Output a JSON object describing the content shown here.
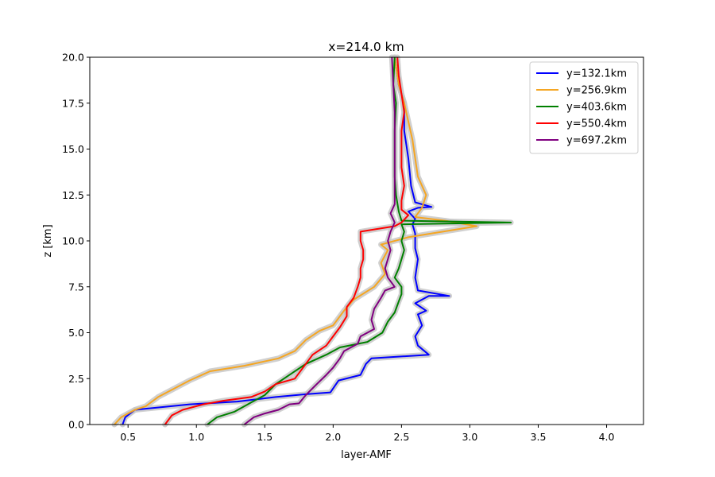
{
  "chart_data": {
    "type": "line",
    "title": "x=214.0 km",
    "xlabel": "layer-AMF",
    "ylabel": "z [km]",
    "xlim": [
      0.22,
      4.27
    ],
    "ylim": [
      0,
      20
    ],
    "xticks": [
      "0.5",
      "1.0",
      "1.5",
      "2.0",
      "2.5",
      "3.0",
      "3.5",
      "4.0"
    ],
    "yticks": [
      "0.0",
      "2.5",
      "5.0",
      "7.5",
      "10.0",
      "12.5",
      "15.0",
      "17.5",
      "20.0"
    ],
    "grid": false,
    "legend_position": "top-right",
    "uncertainty_band_color": "#c8c8c8",
    "series": [
      {
        "name": "y=132.1km",
        "color": "#0000ff",
        "points": [
          [
            0.46,
            0
          ],
          [
            0.48,
            0.4
          ],
          [
            0.55,
            0.8
          ],
          [
            0.95,
            1.1
          ],
          [
            1.3,
            1.25
          ],
          [
            1.58,
            1.5
          ],
          [
            1.8,
            1.65
          ],
          [
            1.98,
            1.75
          ],
          [
            2.04,
            2.4
          ],
          [
            2.2,
            2.7
          ],
          [
            2.24,
            3.3
          ],
          [
            2.28,
            3.6
          ],
          [
            2.7,
            3.8
          ],
          [
            2.62,
            4.3
          ],
          [
            2.6,
            4.8
          ],
          [
            2.65,
            5.4
          ],
          [
            2.62,
            6.0
          ],
          [
            2.68,
            6.2
          ],
          [
            2.6,
            6.6
          ],
          [
            2.7,
            7.0
          ],
          [
            2.85,
            7.0
          ],
          [
            2.62,
            7.3
          ],
          [
            2.6,
            8.0
          ],
          [
            2.62,
            9.0
          ],
          [
            2.6,
            9.6
          ],
          [
            2.6,
            10.4
          ],
          [
            2.58,
            10.9
          ],
          [
            2.6,
            11.2
          ],
          [
            2.55,
            11.6
          ],
          [
            2.62,
            11.8
          ],
          [
            2.72,
            11.85
          ],
          [
            2.6,
            12.1
          ],
          [
            2.57,
            13.0
          ],
          [
            2.55,
            14.5
          ],
          [
            2.52,
            16.0
          ],
          [
            2.52,
            17.5
          ],
          [
            2.48,
            18.5
          ],
          [
            2.45,
            20
          ]
        ]
      },
      {
        "name": "y=256.9km",
        "color": "#f5a623",
        "points": [
          [
            0.4,
            0
          ],
          [
            0.45,
            0.4
          ],
          [
            0.55,
            0.8
          ],
          [
            0.63,
            1.0
          ],
          [
            0.72,
            1.5
          ],
          [
            0.95,
            2.4
          ],
          [
            1.1,
            2.9
          ],
          [
            1.35,
            3.2
          ],
          [
            1.6,
            3.6
          ],
          [
            1.72,
            4.0
          ],
          [
            1.8,
            4.6
          ],
          [
            1.9,
            5.1
          ],
          [
            2.0,
            5.4
          ],
          [
            2.08,
            6.2
          ],
          [
            2.15,
            6.8
          ],
          [
            2.3,
            7.5
          ],
          [
            2.38,
            8.2
          ],
          [
            2.35,
            8.8
          ],
          [
            2.4,
            9.5
          ],
          [
            2.35,
            9.8
          ],
          [
            2.55,
            10.2
          ],
          [
            3.05,
            10.8
          ],
          [
            2.82,
            11.1
          ],
          [
            2.6,
            11.3
          ],
          [
            2.65,
            11.8
          ],
          [
            2.68,
            12.5
          ],
          [
            2.62,
            13.5
          ],
          [
            2.6,
            14.5
          ],
          [
            2.58,
            15.5
          ],
          [
            2.55,
            16.5
          ],
          [
            2.52,
            17.5
          ],
          [
            2.48,
            18.5
          ],
          [
            2.45,
            20
          ]
        ]
      },
      {
        "name": "y=403.6km",
        "color": "#008000",
        "points": [
          [
            1.08,
            0
          ],
          [
            1.15,
            0.4
          ],
          [
            1.28,
            0.7
          ],
          [
            1.4,
            1.2
          ],
          [
            1.5,
            1.6
          ],
          [
            1.58,
            2.2
          ],
          [
            1.7,
            2.8
          ],
          [
            1.8,
            3.3
          ],
          [
            1.95,
            3.8
          ],
          [
            2.05,
            4.2
          ],
          [
            2.25,
            4.5
          ],
          [
            2.36,
            5.0
          ],
          [
            2.4,
            5.6
          ],
          [
            2.45,
            6.1
          ],
          [
            2.48,
            6.7
          ],
          [
            2.5,
            7.1
          ],
          [
            2.5,
            7.5
          ],
          [
            2.45,
            8.0
          ],
          [
            2.48,
            8.5
          ],
          [
            2.5,
            9.0
          ],
          [
            2.52,
            9.5
          ],
          [
            2.5,
            10.0
          ],
          [
            2.52,
            10.5
          ],
          [
            2.5,
            10.9
          ],
          [
            3.3,
            11.0
          ],
          [
            2.5,
            11.1
          ],
          [
            2.48,
            11.6
          ],
          [
            2.46,
            12.5
          ],
          [
            2.45,
            13.5
          ],
          [
            2.45,
            14.5
          ],
          [
            2.45,
            16.0
          ],
          [
            2.46,
            17.5
          ],
          [
            2.44,
            18.5
          ],
          [
            2.45,
            20
          ]
        ]
      },
      {
        "name": "y=550.4km",
        "color": "#ff0000",
        "points": [
          [
            0.77,
            0
          ],
          [
            0.82,
            0.5
          ],
          [
            0.9,
            0.8
          ],
          [
            1.05,
            1.1
          ],
          [
            1.2,
            1.3
          ],
          [
            1.4,
            1.5
          ],
          [
            1.5,
            1.8
          ],
          [
            1.58,
            2.2
          ],
          [
            1.72,
            2.5
          ],
          [
            1.75,
            2.8
          ],
          [
            1.8,
            3.3
          ],
          [
            1.85,
            3.8
          ],
          [
            1.95,
            4.3
          ],
          [
            2.0,
            4.8
          ],
          [
            2.05,
            5.3
          ],
          [
            2.1,
            5.9
          ],
          [
            2.1,
            6.4
          ],
          [
            2.15,
            6.9
          ],
          [
            2.18,
            7.5
          ],
          [
            2.2,
            8.0
          ],
          [
            2.2,
            8.5
          ],
          [
            2.22,
            9.0
          ],
          [
            2.22,
            9.5
          ],
          [
            2.2,
            10.0
          ],
          [
            2.2,
            10.5
          ],
          [
            2.45,
            10.8
          ],
          [
            2.5,
            11.0
          ],
          [
            2.55,
            11.4
          ],
          [
            2.5,
            11.7
          ],
          [
            2.5,
            12.2
          ],
          [
            2.52,
            13.0
          ],
          [
            2.5,
            14.0
          ],
          [
            2.5,
            15.0
          ],
          [
            2.5,
            16.0
          ],
          [
            2.52,
            17.0
          ],
          [
            2.5,
            18.0
          ],
          [
            2.48,
            19.0
          ],
          [
            2.47,
            20
          ]
        ]
      },
      {
        "name": "y=697.2km",
        "color": "#800080",
        "points": [
          [
            1.35,
            0
          ],
          [
            1.42,
            0.4
          ],
          [
            1.5,
            0.6
          ],
          [
            1.6,
            0.8
          ],
          [
            1.68,
            1.1
          ],
          [
            1.75,
            1.15
          ],
          [
            1.8,
            1.6
          ],
          [
            1.88,
            2.2
          ],
          [
            1.95,
            2.7
          ],
          [
            2.0,
            3.1
          ],
          [
            2.05,
            3.6
          ],
          [
            2.08,
            4.0
          ],
          [
            2.18,
            4.4
          ],
          [
            2.2,
            4.8
          ],
          [
            2.3,
            5.2
          ],
          [
            2.28,
            5.7
          ],
          [
            2.3,
            6.3
          ],
          [
            2.35,
            6.9
          ],
          [
            2.38,
            7.3
          ],
          [
            2.45,
            7.5
          ],
          [
            2.4,
            8.0
          ],
          [
            2.38,
            8.5
          ],
          [
            2.4,
            9.0
          ],
          [
            2.42,
            9.5
          ],
          [
            2.4,
            10.0
          ],
          [
            2.42,
            10.5
          ],
          [
            2.45,
            11.0
          ],
          [
            2.42,
            11.5
          ],
          [
            2.45,
            12.0
          ],
          [
            2.45,
            13.0
          ],
          [
            2.45,
            14.0
          ],
          [
            2.45,
            15.0
          ],
          [
            2.45,
            16.0
          ],
          [
            2.45,
            17.0
          ],
          [
            2.44,
            18.5
          ],
          [
            2.43,
            20
          ]
        ]
      }
    ]
  }
}
